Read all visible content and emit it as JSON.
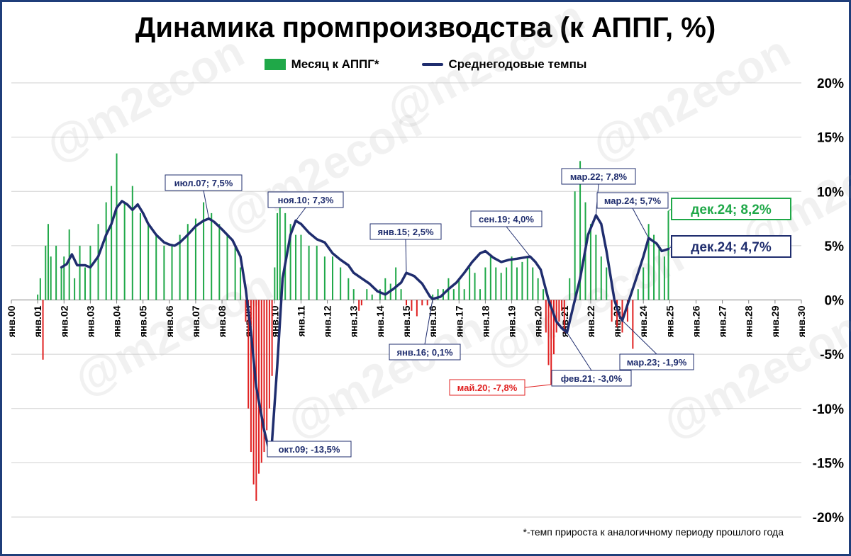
{
  "chart_data": {
    "type": "bar",
    "title": "Динамика промпроизводства (к АППГ, %)",
    "footnote": "*-темп прироста к аналогичному периоду прошлого года",
    "watermark": "@m2econ",
    "ylim": [
      -20,
      20
    ],
    "yticks": [
      "20%",
      "15%",
      "10%",
      "5%",
      "0%",
      "-5%",
      "-10%",
      "-15%",
      "-20%"
    ],
    "xlim": [
      2000,
      2030
    ],
    "xticks": [
      "янв.00",
      "янв.01",
      "янв.02",
      "янв.03",
      "янв.04",
      "янв.05",
      "янв.06",
      "янв.07",
      "янв.08",
      "янв.09",
      "янв.10",
      "янв.11",
      "янв.12",
      "янв.13",
      "янв.14",
      "янв.15",
      "янв.16",
      "янв.17",
      "янв.18",
      "янв.19",
      "янв.20",
      "янв.21",
      "янв.22",
      "янв.23",
      "янв.24",
      "янв.25",
      "янв.26",
      "янв.27",
      "янв.28",
      "янв.29",
      "янв.30"
    ],
    "grid": true,
    "legend_position": "top-center",
    "colors": {
      "positive": "#1fa848",
      "negative": "#e02020",
      "line": "#1f2d6e",
      "grid": "#d0d0d0",
      "green_label": "#1fa848",
      "red_label": "#e02020"
    },
    "series": [
      {
        "name": "Месяц к АППГ*",
        "type": "bar",
        "points": [
          [
            2001.0,
            0.5
          ],
          [
            2001.1,
            2
          ],
          [
            2001.2,
            -5.5
          ],
          [
            2001.3,
            5
          ],
          [
            2001.4,
            7
          ],
          [
            2001.5,
            4
          ],
          [
            2001.7,
            5
          ],
          [
            2001.9,
            3
          ],
          [
            2002.0,
            4
          ],
          [
            2002.2,
            6.5
          ],
          [
            2002.4,
            2
          ],
          [
            2002.6,
            5
          ],
          [
            2002.8,
            3
          ],
          [
            2003.0,
            5
          ],
          [
            2003.3,
            7
          ],
          [
            2003.6,
            9
          ],
          [
            2003.8,
            10.5
          ],
          [
            2004.0,
            13.5
          ],
          [
            2004.3,
            9
          ],
          [
            2004.6,
            10.5
          ],
          [
            2004.9,
            8
          ],
          [
            2005.2,
            7
          ],
          [
            2005.5,
            6
          ],
          [
            2005.8,
            5
          ],
          [
            2006.1,
            5
          ],
          [
            2006.4,
            6
          ],
          [
            2006.7,
            7
          ],
          [
            2007.0,
            7.5
          ],
          [
            2007.3,
            9
          ],
          [
            2007.6,
            8
          ],
          [
            2007.9,
            7
          ],
          [
            2008.2,
            6
          ],
          [
            2008.5,
            5
          ],
          [
            2008.7,
            3
          ],
          [
            2008.9,
            -2
          ],
          [
            2009.0,
            -10
          ],
          [
            2009.1,
            -14
          ],
          [
            2009.2,
            -17
          ],
          [
            2009.3,
            -18.5
          ],
          [
            2009.4,
            -16
          ],
          [
            2009.5,
            -15
          ],
          [
            2009.6,
            -14
          ],
          [
            2009.7,
            -12
          ],
          [
            2009.8,
            -10
          ],
          [
            2009.9,
            -7
          ],
          [
            2010.0,
            3
          ],
          [
            2010.1,
            8
          ],
          [
            2010.2,
            9.5
          ],
          [
            2010.4,
            8
          ],
          [
            2010.6,
            7
          ],
          [
            2010.8,
            6
          ],
          [
            2011.0,
            6
          ],
          [
            2011.3,
            5
          ],
          [
            2011.6,
            5
          ],
          [
            2011.9,
            4
          ],
          [
            2012.2,
            4
          ],
          [
            2012.5,
            3
          ],
          [
            2012.8,
            2
          ],
          [
            2013.0,
            1
          ],
          [
            2013.2,
            -1
          ],
          [
            2013.3,
            -0.5
          ],
          [
            2013.5,
            1
          ],
          [
            2013.7,
            0.5
          ],
          [
            2014.0,
            1
          ],
          [
            2014.2,
            2
          ],
          [
            2014.4,
            1.5
          ],
          [
            2014.6,
            3
          ],
          [
            2014.8,
            1
          ],
          [
            2015.0,
            -0.5
          ],
          [
            2015.2,
            -1
          ],
          [
            2015.4,
            -1.5
          ],
          [
            2015.6,
            -0.5
          ],
          [
            2015.8,
            -0.5
          ],
          [
            2016.0,
            0.5
          ],
          [
            2016.2,
            1
          ],
          [
            2016.4,
            1
          ],
          [
            2016.6,
            2
          ],
          [
            2016.8,
            1
          ],
          [
            2017.0,
            2
          ],
          [
            2017.2,
            1
          ],
          [
            2017.4,
            3
          ],
          [
            2017.6,
            2.5
          ],
          [
            2017.8,
            1
          ],
          [
            2018.0,
            3
          ],
          [
            2018.2,
            4
          ],
          [
            2018.4,
            3
          ],
          [
            2018.6,
            2.5
          ],
          [
            2018.8,
            3
          ],
          [
            2019.0,
            4
          ],
          [
            2019.2,
            3
          ],
          [
            2019.4,
            3.5
          ],
          [
            2019.6,
            4
          ],
          [
            2019.8,
            3
          ],
          [
            2020.0,
            2
          ],
          [
            2020.2,
            1
          ],
          [
            2020.3,
            -3
          ],
          [
            2020.4,
            -6
          ],
          [
            2020.5,
            -7.8
          ],
          [
            2020.6,
            -5
          ],
          [
            2020.7,
            -3
          ],
          [
            2020.8,
            -2
          ],
          [
            2020.9,
            -1
          ],
          [
            2021.0,
            -3
          ],
          [
            2021.2,
            2
          ],
          [
            2021.4,
            10
          ],
          [
            2021.6,
            12.8
          ],
          [
            2021.8,
            9
          ],
          [
            2022.0,
            7
          ],
          [
            2022.2,
            6
          ],
          [
            2022.4,
            4
          ],
          [
            2022.6,
            3
          ],
          [
            2022.8,
            -2
          ],
          [
            2023.0,
            -2.5
          ],
          [
            2023.2,
            -3
          ],
          [
            2023.4,
            -2
          ],
          [
            2023.6,
            -4.5
          ],
          [
            2023.8,
            1
          ],
          [
            2024.0,
            3
          ],
          [
            2024.2,
            7
          ],
          [
            2024.4,
            6
          ],
          [
            2024.6,
            5
          ],
          [
            2024.8,
            4
          ],
          [
            2024.95,
            8.2
          ]
        ]
      },
      {
        "name": "Среднегодовые темпы",
        "type": "line",
        "points": [
          [
            2001.9,
            3
          ],
          [
            2002.1,
            3.3
          ],
          [
            2002.3,
            4.2
          ],
          [
            2002.5,
            3.2
          ],
          [
            2002.8,
            3.2
          ],
          [
            2003.0,
            3
          ],
          [
            2003.3,
            4
          ],
          [
            2003.6,
            6
          ],
          [
            2003.8,
            7
          ],
          [
            2004.0,
            8.5
          ],
          [
            2004.2,
            9.1
          ],
          [
            2004.4,
            8.8
          ],
          [
            2004.6,
            8.3
          ],
          [
            2004.8,
            8.8
          ],
          [
            2005.0,
            8
          ],
          [
            2005.2,
            7
          ],
          [
            2005.5,
            6
          ],
          [
            2005.8,
            5.3
          ],
          [
            2006.0,
            5.1
          ],
          [
            2006.2,
            5
          ],
          [
            2006.4,
            5.3
          ],
          [
            2006.7,
            6
          ],
          [
            2007.0,
            6.8
          ],
          [
            2007.3,
            7.3
          ],
          [
            2007.5,
            7.5
          ],
          [
            2007.7,
            7.2
          ],
          [
            2008.0,
            6.5
          ],
          [
            2008.4,
            5.5
          ],
          [
            2008.7,
            4
          ],
          [
            2008.9,
            1
          ],
          [
            2009.1,
            -3
          ],
          [
            2009.3,
            -8
          ],
          [
            2009.6,
            -12
          ],
          [
            2009.75,
            -13.5
          ],
          [
            2009.9,
            -13
          ],
          [
            2010.1,
            -6
          ],
          [
            2010.3,
            2
          ],
          [
            2010.6,
            6
          ],
          [
            2010.8,
            7.3
          ],
          [
            2011.0,
            7
          ],
          [
            2011.3,
            6.2
          ],
          [
            2011.6,
            5.6
          ],
          [
            2011.9,
            5.3
          ],
          [
            2012.2,
            4.3
          ],
          [
            2012.5,
            3.7
          ],
          [
            2012.8,
            3.2
          ],
          [
            2013.0,
            2.5
          ],
          [
            2013.3,
            2
          ],
          [
            2013.6,
            1.5
          ],
          [
            2013.9,
            0.8
          ],
          [
            2014.2,
            0.5
          ],
          [
            2014.5,
            1
          ],
          [
            2014.8,
            1.6
          ],
          [
            2015.0,
            2.5
          ],
          [
            2015.3,
            2.2
          ],
          [
            2015.6,
            1.5
          ],
          [
            2015.9,
            0.3
          ],
          [
            2016.0,
            0.1
          ],
          [
            2016.3,
            0.3
          ],
          [
            2016.6,
            1
          ],
          [
            2016.9,
            1.6
          ],
          [
            2017.2,
            2.5
          ],
          [
            2017.5,
            3.5
          ],
          [
            2017.8,
            4.3
          ],
          [
            2018.0,
            4.5
          ],
          [
            2018.3,
            3.9
          ],
          [
            2018.6,
            3.5
          ],
          [
            2018.9,
            3.7
          ],
          [
            2019.2,
            3.8
          ],
          [
            2019.7,
            4
          ],
          [
            2019.9,
            3.5
          ],
          [
            2020.1,
            2.8
          ],
          [
            2020.4,
            0
          ],
          [
            2020.7,
            -2
          ],
          [
            2020.9,
            -2.6
          ],
          [
            2021.1,
            -3
          ],
          [
            2021.3,
            -1
          ],
          [
            2021.6,
            2
          ],
          [
            2021.9,
            6
          ],
          [
            2022.2,
            7.8
          ],
          [
            2022.4,
            7
          ],
          [
            2022.6,
            4.5
          ],
          [
            2022.9,
            0
          ],
          [
            2023.1,
            -1.5
          ],
          [
            2023.2,
            -1.9
          ],
          [
            2023.5,
            0.3
          ],
          [
            2023.8,
            2.5
          ],
          [
            2024.0,
            4
          ],
          [
            2024.2,
            5.7
          ],
          [
            2024.5,
            5.2
          ],
          [
            2024.7,
            4.5
          ],
          [
            2024.95,
            4.7
          ]
        ]
      }
    ],
    "annotations": [
      {
        "text": "июл.07; 7,5%",
        "x": 2007.5,
        "y": 7.5,
        "color": "navy"
      },
      {
        "text": "ноя.10; 7,3%",
        "x": 2010.8,
        "y": 7.3,
        "color": "navy"
      },
      {
        "text": "янв.15; 2,5%",
        "x": 2015.0,
        "y": 2.5,
        "color": "navy"
      },
      {
        "text": "янв.16; 0,1%",
        "x": 2016.0,
        "y": 0.1,
        "color": "navy"
      },
      {
        "text": "сен.19; 4,0%",
        "x": 2019.7,
        "y": 4.0,
        "color": "navy"
      },
      {
        "text": "мар.22; 7,8%",
        "x": 2022.2,
        "y": 7.8,
        "color": "navy"
      },
      {
        "text": "мар.24; 5,7%",
        "x": 2024.2,
        "y": 5.7,
        "color": "navy"
      },
      {
        "text": "дек.24; 8,2%",
        "x": 2024.95,
        "y": 8.2,
        "color": "green"
      },
      {
        "text": "дек.24; 4,7%",
        "x": 2024.95,
        "y": 4.7,
        "color": "navy"
      },
      {
        "text": "окт.09; -13,5%",
        "x": 2009.75,
        "y": -13.5,
        "color": "navy"
      },
      {
        "text": "май.20; -7,8%",
        "x": 2020.5,
        "y": -7.8,
        "color": "red"
      },
      {
        "text": "фев.21; -3,0%",
        "x": 2021.1,
        "y": -3.0,
        "color": "navy"
      },
      {
        "text": "мар.23; -1,9%",
        "x": 2023.2,
        "y": -1.9,
        "color": "navy"
      }
    ]
  }
}
